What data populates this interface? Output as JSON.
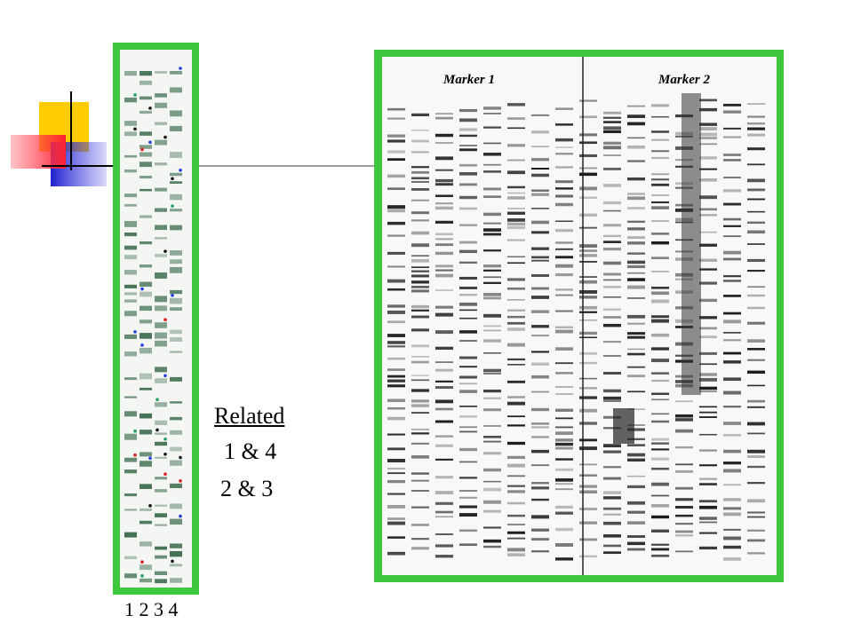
{
  "slide": {
    "gel_left": {
      "lane_labels": "1 2 3 4"
    },
    "gel_right": {
      "marker_labels": [
        "Marker 1",
        "Marker 2"
      ]
    },
    "note": {
      "heading": "Related",
      "pairs": [
        "1 & 4",
        "2 & 3"
      ]
    }
  }
}
